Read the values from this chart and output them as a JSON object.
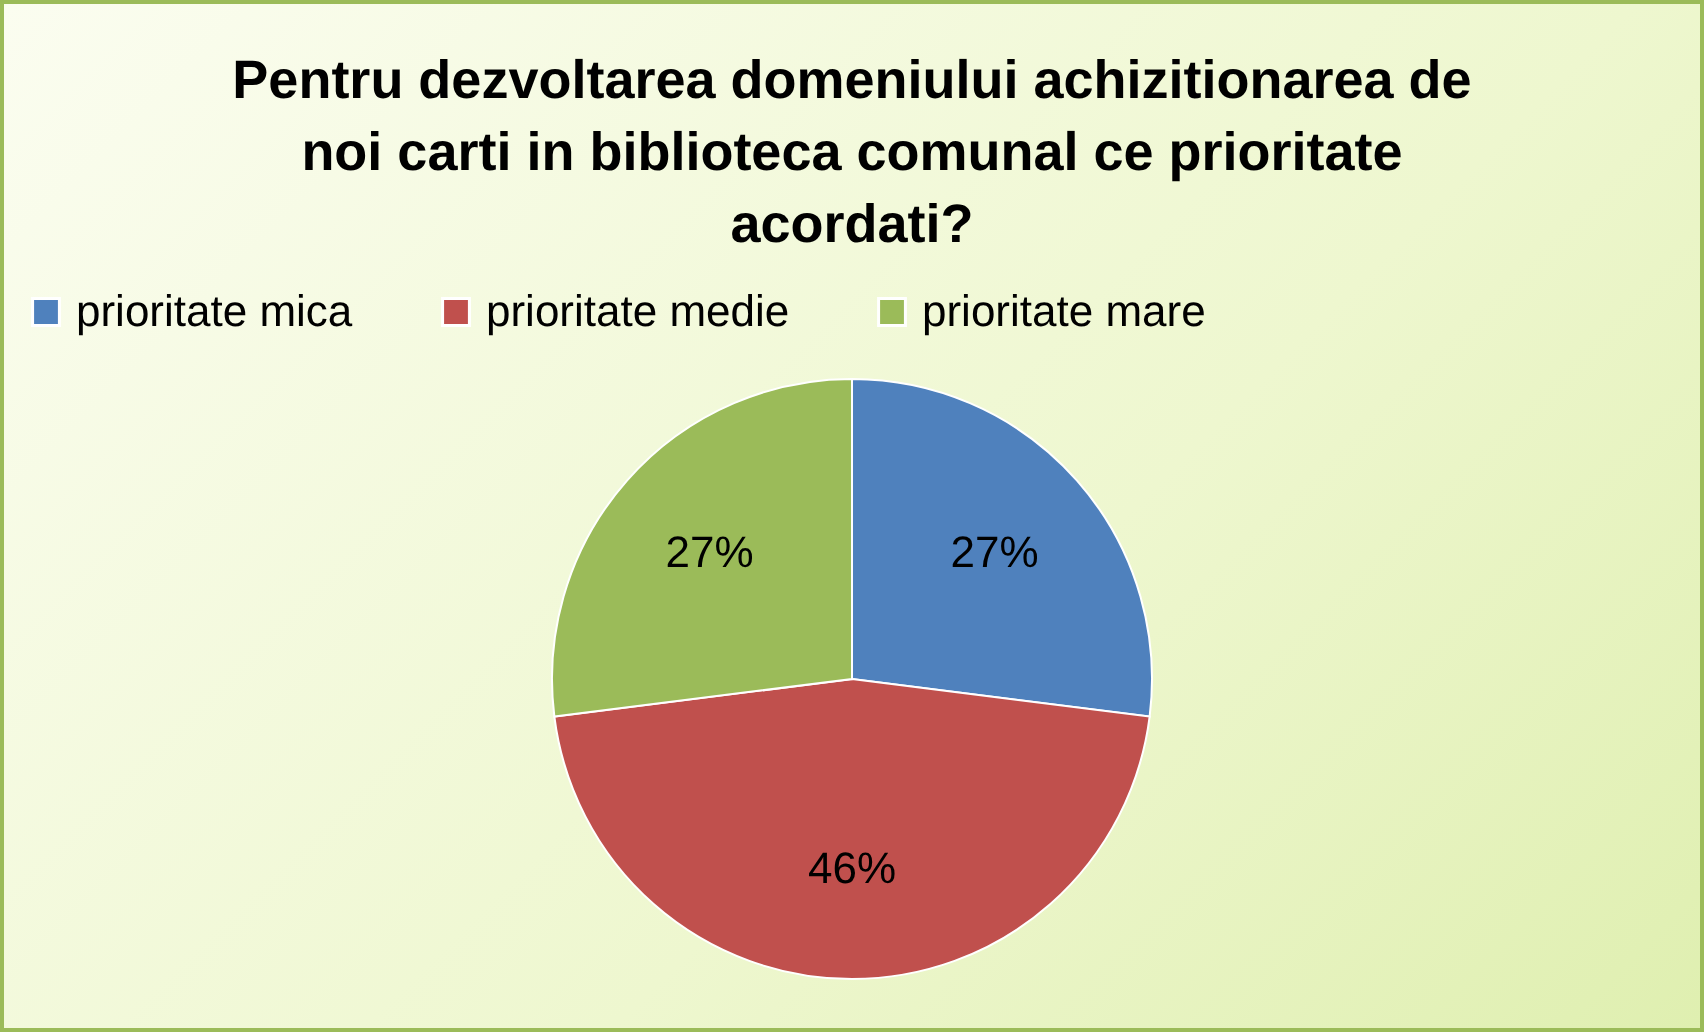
{
  "chart_data": {
    "type": "pie",
    "title": "Pentru dezvoltarea domeniului achizitionarea de noi carti in biblioteca comunal ce prioritate acordati?",
    "categories": [
      "prioritate mica",
      "prioritate medie",
      "prioritate mare"
    ],
    "values": [
      27,
      46,
      27
    ],
    "colors": [
      "#4f81bd",
      "#c0504d",
      "#9bbb59"
    ],
    "value_labels": [
      "27%",
      "46%",
      "27%"
    ],
    "legend": "top"
  }
}
